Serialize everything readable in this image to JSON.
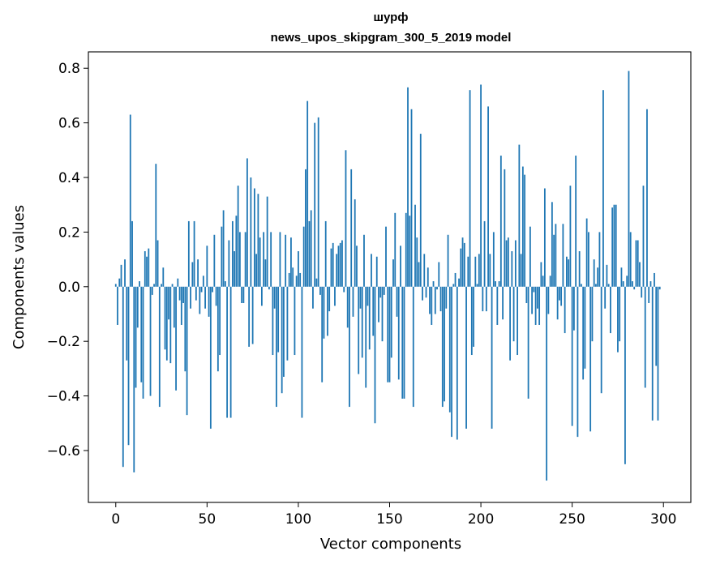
{
  "chart_data": {
    "type": "bar",
    "title_line1": "шурф",
    "title_line2": "news_upos_skipgram_300_5_2019 model",
    "xlabel": "Vector components",
    "ylabel": "Components values",
    "xlim": [
      -15,
      315
    ],
    "ylim": [
      -0.79,
      0.86
    ],
    "x_ticks": [
      0,
      50,
      100,
      150,
      200,
      250,
      300
    ],
    "y_ticks": [
      -0.6,
      -0.4,
      -0.2,
      0.0,
      0.2,
      0.4,
      0.6,
      0.8
    ],
    "y_tick_labels": [
      "−0.6",
      "−0.4",
      "−0.2",
      "0.0",
      "0.2",
      "0.4",
      "0.6",
      "0.8"
    ],
    "bar_color": "#1f77b4",
    "values": [
      0.01,
      -0.14,
      0.03,
      0.08,
      -0.66,
      0.1,
      -0.27,
      -0.58,
      0.63,
      0.24,
      -0.68,
      -0.37,
      -0.15,
      0.02,
      -0.35,
      -0.41,
      0.13,
      0.11,
      0.14,
      -0.4,
      -0.03,
      0.01,
      0.45,
      0.17,
      -0.44,
      0.01,
      0.07,
      -0.23,
      -0.27,
      -0.12,
      -0.28,
      0.01,
      -0.15,
      -0.38,
      0.03,
      -0.05,
      -0.14,
      -0.06,
      -0.31,
      -0.47,
      0.24,
      -0.08,
      0.09,
      0.24,
      -0.05,
      0.1,
      -0.1,
      -0.02,
      0.04,
      -0.08,
      0.15,
      -0.11,
      -0.52,
      -0.02,
      0.19,
      -0.07,
      -0.31,
      -0.25,
      0.22,
      0.28,
      0.02,
      -0.48,
      0.17,
      -0.48,
      0.24,
      0.13,
      0.26,
      0.37,
      0.2,
      -0.06,
      -0.06,
      0.2,
      0.47,
      -0.22,
      0.4,
      -0.21,
      0.36,
      0.12,
      0.34,
      0.18,
      -0.07,
      0.2,
      0.1,
      0.33,
      -0.01,
      0.2,
      -0.25,
      -0.08,
      -0.44,
      -0.24,
      0.2,
      -0.39,
      -0.33,
      0.19,
      -0.27,
      0.05,
      0.18,
      0.07,
      -0.25,
      0.04,
      0.13,
      0.05,
      -0.48,
      0.22,
      0.43,
      0.68,
      0.24,
      0.28,
      -0.08,
      0.6,
      0.03,
      0.62,
      -0.03,
      -0.35,
      -0.19,
      0.24,
      -0.18,
      -0.09,
      0.14,
      0.16,
      -0.07,
      0.12,
      0.15,
      0.16,
      0.17,
      -0.02,
      0.5,
      -0.15,
      -0.44,
      0.43,
      -0.11,
      0.32,
      0.15,
      -0.32,
      -0.08,
      -0.26,
      0.19,
      -0.37,
      -0.07,
      -0.23,
      0.12,
      -0.18,
      -0.5,
      0.11,
      -0.13,
      -0.04,
      -0.2,
      -0.03,
      0.22,
      -0.35,
      -0.35,
      -0.26,
      0.1,
      0.27,
      -0.11,
      -0.34,
      0.15,
      -0.41,
      -0.41,
      0.27,
      0.73,
      0.26,
      0.65,
      -0.44,
      0.3,
      0.18,
      0.09,
      0.56,
      -0.05,
      0.12,
      -0.04,
      0.07,
      -0.1,
      -0.14,
      0.02,
      -0.1,
      -0.01,
      0.09,
      -0.09,
      -0.44,
      -0.42,
      -0.08,
      0.19,
      -0.46,
      -0.55,
      0.01,
      0.05,
      -0.56,
      0.03,
      0.14,
      0.18,
      0.16,
      -0.52,
      0.11,
      0.72,
      -0.25,
      -0.22,
      0.11,
      0.01,
      0.12,
      0.74,
      -0.09,
      0.24,
      -0.09,
      0.66,
      0.12,
      -0.52,
      0.2,
      0.02,
      -0.14,
      0.02,
      0.48,
      -0.12,
      0.43,
      0.17,
      0.18,
      -0.27,
      0.13,
      -0.2,
      0.17,
      -0.25,
      0.52,
      0.12,
      0.44,
      0.41,
      -0.06,
      -0.41,
      0.22,
      -0.1,
      -0.02,
      -0.14,
      -0.08,
      -0.14,
      0.09,
      0.04,
      0.36,
      -0.71,
      -0.1,
      0.04,
      0.31,
      0.19,
      0.23,
      -0.12,
      -0.05,
      -0.07,
      0.23,
      -0.17,
      0.11,
      0.1,
      0.37,
      -0.51,
      -0.16,
      0.48,
      -0.55,
      0.13,
      0.01,
      -0.34,
      -0.3,
      0.25,
      0.2,
      -0.53,
      -0.2,
      0.1,
      0.01,
      0.07,
      0.2,
      -0.39,
      0.72,
      -0.08,
      0.08,
      0.01,
      -0.17,
      0.29,
      0.3,
      0.3,
      -0.24,
      -0.2,
      0.07,
      0.02,
      -0.65,
      0.04,
      0.79,
      0.2,
      0.02,
      -0.01,
      0.17,
      0.17,
      0.09,
      -0.04,
      0.37,
      -0.37,
      0.65,
      -0.06,
      0.02,
      -0.49,
      0.05,
      -0.29,
      -0.49,
      -0.01
    ]
  }
}
